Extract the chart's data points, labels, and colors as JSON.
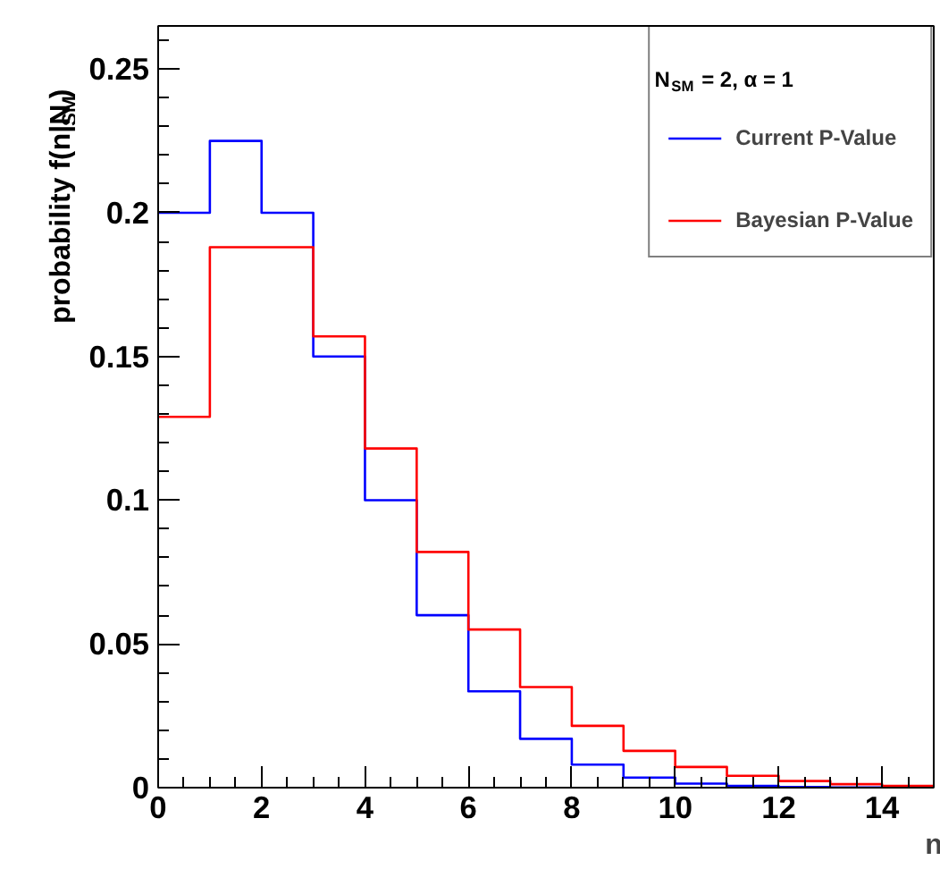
{
  "chart_data": {
    "type": "histogram",
    "xlabel": "n",
    "ylabel": "probability f(n|N$_{SM}$)",
    "legend_title": "N$_{SM}$ = 2, α = 1",
    "bins": [
      0,
      1,
      2,
      3,
      4,
      5,
      6,
      7,
      8,
      9,
      10,
      11,
      12,
      13,
      14,
      15
    ],
    "series": [
      {
        "name": "Current P-Value",
        "color": "#0000ff",
        "values": [
          0.2,
          0.225,
          0.2,
          0.15,
          0.1,
          0.06,
          0.0335,
          0.017,
          0.008,
          0.0035,
          0.0014,
          0.0006,
          0.0002,
          0.0001,
          0.0001
        ]
      },
      {
        "name": "Bayesian P-Value",
        "color": "#ff0000",
        "values": [
          0.129,
          0.188,
          0.188,
          0.157,
          0.118,
          0.082,
          0.055,
          0.035,
          0.0215,
          0.0128,
          0.0072,
          0.0041,
          0.0023,
          0.0012,
          0.0006
        ]
      }
    ],
    "xlim": [
      0,
      15
    ],
    "ylim": [
      0,
      0.265
    ],
    "xticks": [
      0,
      2,
      4,
      6,
      8,
      10,
      12,
      14
    ],
    "yticks": [
      0,
      0.05,
      {
        "value": 0.1,
        "label": "0.1"
      },
      0.15,
      {
        "value": 0.2,
        "label": "0.2"
      },
      0.25
    ],
    "grid": false,
    "legend": "top right"
  }
}
